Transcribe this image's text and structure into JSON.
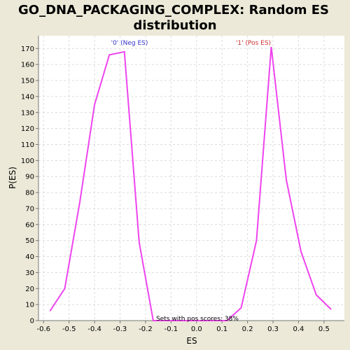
{
  "chart_data": {
    "type": "line",
    "title_line1": "GO_DNA_PACKAGING_COMPLEX: Random ES",
    "title_line2": "distribution",
    "xlabel": "ES",
    "ylabel": "P(ES)",
    "xlim": [
      -0.62,
      0.58
    ],
    "ylim": [
      0,
      178
    ],
    "x_ticks": [
      -0.6,
      -0.5,
      -0.4,
      -0.3,
      -0.2,
      -0.1,
      0.0,
      0.1,
      0.2,
      0.3,
      0.4,
      0.5
    ],
    "y_ticks": [
      0,
      10,
      20,
      30,
      40,
      50,
      60,
      70,
      80,
      90,
      100,
      110,
      120,
      130,
      140,
      150,
      160,
      170
    ],
    "grid": true,
    "series": [
      {
        "color": "#ee44ee",
        "x": [
          -0.575,
          -0.517,
          -0.458,
          -0.4,
          -0.342,
          -0.283,
          -0.225,
          -0.17,
          -0.12,
          -0.06,
          0.0,
          0.06,
          0.12,
          0.175,
          0.235,
          0.293,
          0.352,
          0.41,
          0.47,
          0.528
        ],
        "y": [
          6,
          20,
          74,
          135,
          166,
          168,
          49,
          0,
          0,
          0,
          0,
          0,
          0,
          8,
          50,
          171,
          88,
          43,
          16,
          7
        ]
      }
    ],
    "annotations": {
      "neg_label": "'0' (Neg ES)",
      "pos_label": "'1' (Pos ES)",
      "neg_color": "#3333cc",
      "pos_color": "#cc3333",
      "footnote": "Sets with pos scores: 38%"
    }
  }
}
